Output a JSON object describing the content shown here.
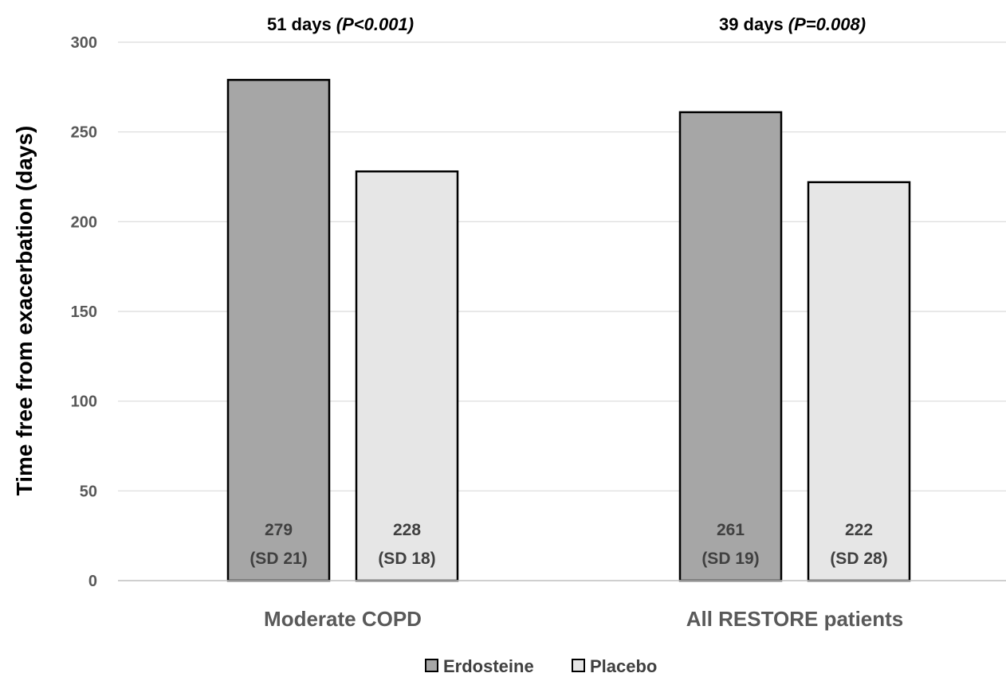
{
  "chart_data": {
    "type": "bar",
    "categories": [
      "Moderate COPD",
      "All RESTORE patients"
    ],
    "series": [
      {
        "name": "Erdosteine",
        "values": [
          279,
          261
        ],
        "labels": [
          "279",
          "261"
        ],
        "sd_labels": [
          "(SD 21)",
          "(SD 19)"
        ],
        "color": "#a6a6a6"
      },
      {
        "name": "Placebo",
        "values": [
          228,
          222
        ],
        "labels": [
          "228",
          "222"
        ],
        "sd_labels": [
          "(SD 18)",
          "(SD 28)"
        ],
        "color": "#e6e6e6"
      }
    ],
    "ylabel": "Time free from exacerbation (days)",
    "xlabel": "",
    "ylim": [
      0,
      300
    ],
    "yticks": [
      0,
      50,
      100,
      150,
      200,
      250,
      300
    ],
    "grid": true,
    "legend_position": "bottom",
    "annotations": [
      {
        "text": "51 days ",
        "p_value": "(P<0.001)"
      },
      {
        "text": "39 days ",
        "p_value": "(P=0.008)"
      }
    ]
  }
}
